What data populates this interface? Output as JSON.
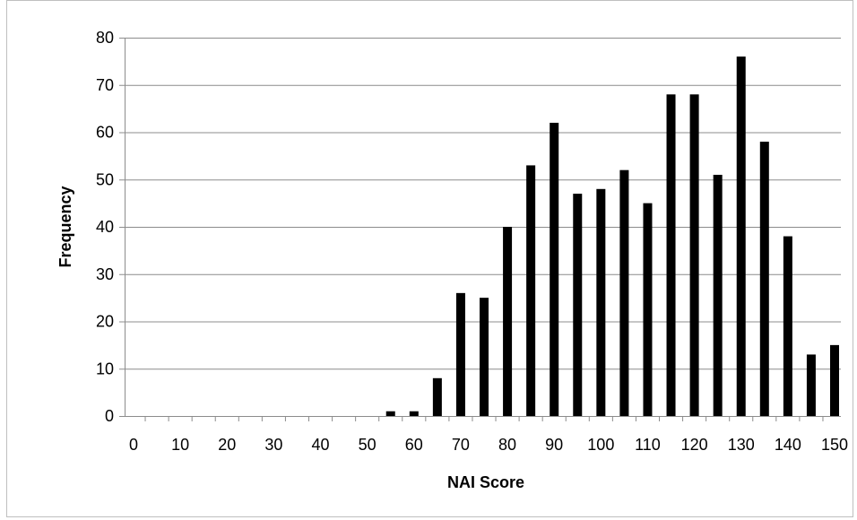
{
  "chart_data": {
    "type": "bar",
    "title": "",
    "xlabel": "NAI Score",
    "ylabel": "Frequency",
    "ylim": [
      0,
      80
    ],
    "yticks": [
      0,
      10,
      20,
      30,
      40,
      50,
      60,
      70,
      80
    ],
    "xticks": [
      0,
      10,
      20,
      30,
      40,
      50,
      60,
      70,
      80,
      90,
      100,
      110,
      120,
      130,
      140,
      150
    ],
    "x": [
      0,
      5,
      10,
      15,
      20,
      25,
      30,
      35,
      40,
      45,
      50,
      55,
      60,
      65,
      70,
      75,
      80,
      85,
      90,
      95,
      100,
      105,
      110,
      115,
      120,
      125,
      130,
      135,
      140,
      145,
      150
    ],
    "values": [
      0,
      0,
      0,
      0,
      0,
      0,
      0,
      0,
      0,
      0,
      0,
      1,
      1,
      8,
      26,
      25,
      40,
      53,
      62,
      47,
      48,
      52,
      45,
      68,
      68,
      51,
      76,
      58,
      38,
      13,
      15
    ],
    "grid": true,
    "legend": "none",
    "bar_color": "#000000"
  }
}
